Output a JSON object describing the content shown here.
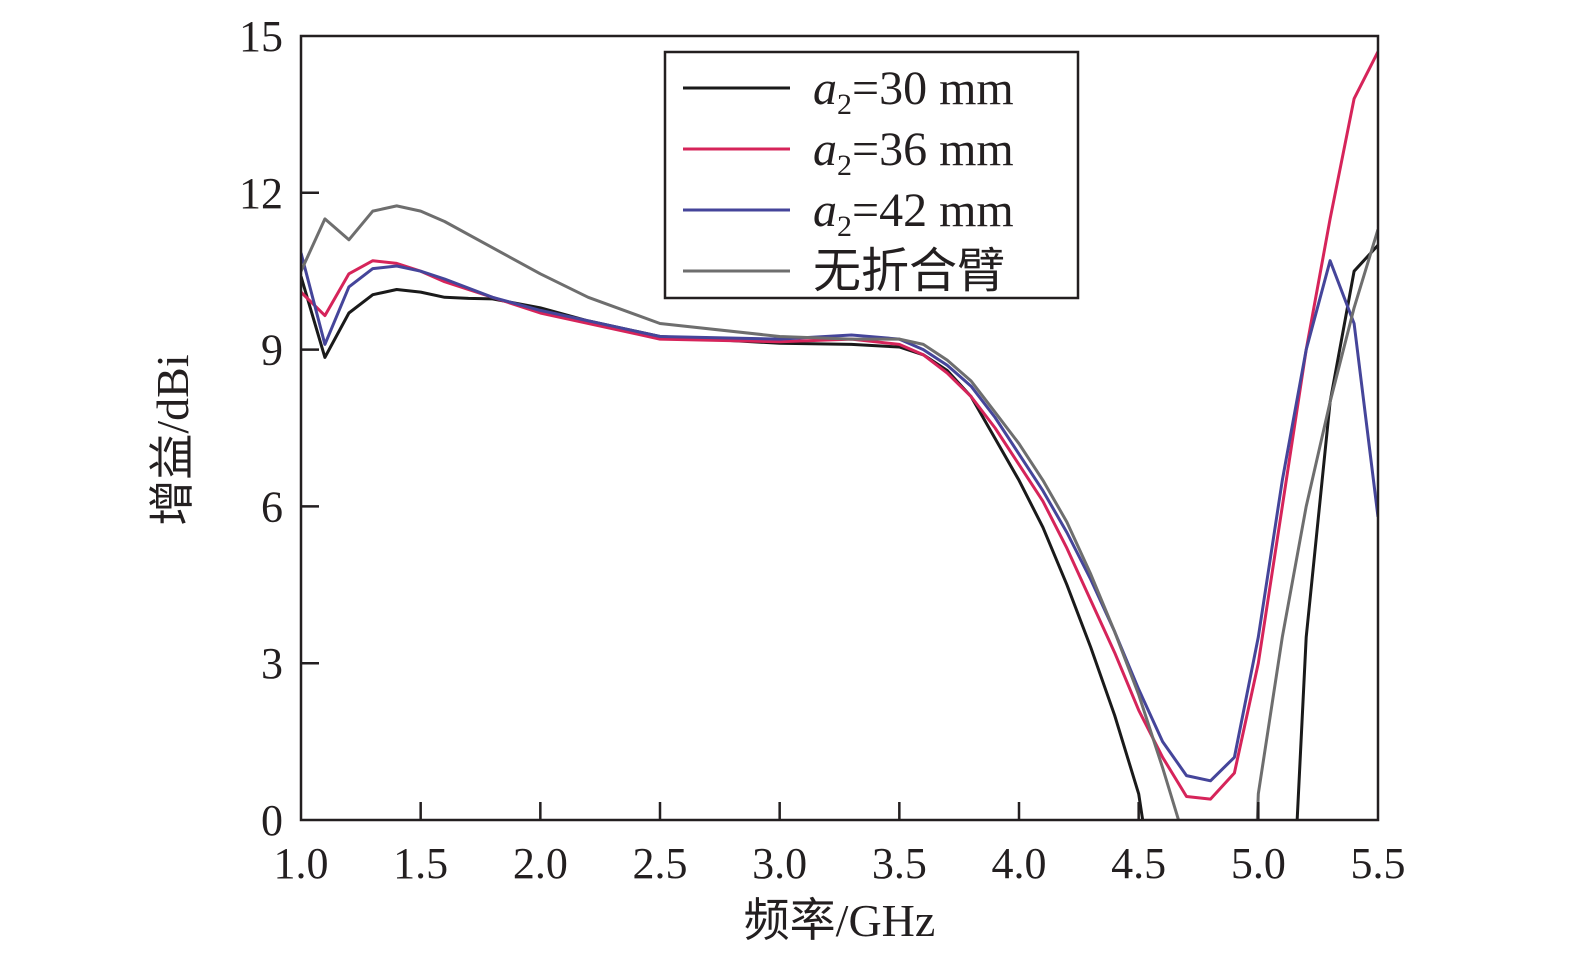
{
  "chart_data": {
    "type": "line",
    "xlabel": "频率/GHz",
    "ylabel": "增益/dBi",
    "xlim": [
      1.0,
      5.5
    ],
    "ylim": [
      0,
      15
    ],
    "xticks": [
      "1.0",
      "1.5",
      "2.0",
      "2.5",
      "3.0",
      "3.5",
      "4.0",
      "4.5",
      "5.0",
      "5.5"
    ],
    "yticks": [
      "0",
      "3",
      "6",
      "9",
      "12",
      "15"
    ],
    "grid": false,
    "legend_position": "top-right",
    "series": [
      {
        "name": "a2=30 mm",
        "legend_base": "a",
        "legend_sub": "2",
        "legend_rest": "=30 mm",
        "color": "#1a1a1a",
        "x": [
          1.0,
          1.1,
          1.2,
          1.3,
          1.4,
          1.5,
          1.6,
          1.7,
          1.8,
          2.0,
          2.2,
          2.5,
          3.0,
          3.3,
          3.5,
          3.6,
          3.7,
          3.8,
          3.9,
          4.0,
          4.1,
          4.2,
          4.3,
          4.4,
          4.5,
          4.55,
          4.58,
          5.13,
          5.2,
          5.3,
          5.4,
          5.5
        ],
        "y": [
          10.4,
          8.85,
          9.7,
          10.05,
          10.15,
          10.1,
          10.0,
          9.98,
          9.97,
          9.8,
          9.55,
          9.25,
          9.12,
          9.1,
          9.05,
          8.9,
          8.6,
          8.1,
          7.3,
          6.5,
          5.6,
          4.5,
          3.3,
          2.0,
          0.5,
          -1.0,
          -3.0,
          -3.0,
          3.5,
          8.0,
          10.5,
          11.0
        ]
      },
      {
        "name": "a2=36 mm",
        "legend_base": "a",
        "legend_sub": "2",
        "legend_rest": "=36 mm",
        "color": "#d6245a",
        "x": [
          1.0,
          1.1,
          1.2,
          1.3,
          1.4,
          1.5,
          1.6,
          1.8,
          2.0,
          2.5,
          3.0,
          3.3,
          3.5,
          3.6,
          3.7,
          3.8,
          3.9,
          4.0,
          4.1,
          4.2,
          4.3,
          4.4,
          4.5,
          4.6,
          4.7,
          4.8,
          4.9,
          5.0,
          5.1,
          5.2,
          5.3,
          5.4,
          5.5
        ],
        "y": [
          10.1,
          9.65,
          10.45,
          10.7,
          10.65,
          10.5,
          10.3,
          10.0,
          9.7,
          9.2,
          9.15,
          9.2,
          9.1,
          8.9,
          8.55,
          8.1,
          7.5,
          6.8,
          6.1,
          5.2,
          4.2,
          3.2,
          2.1,
          1.2,
          0.45,
          0.4,
          0.9,
          3.0,
          6.0,
          9.0,
          11.5,
          13.8,
          14.7
        ]
      },
      {
        "name": "a2=42 mm",
        "legend_base": "a",
        "legend_sub": "2",
        "legend_rest": "=42 mm",
        "color": "#45459a",
        "x": [
          1.0,
          1.1,
          1.2,
          1.3,
          1.4,
          1.5,
          1.6,
          1.8,
          2.0,
          2.5,
          3.0,
          3.3,
          3.5,
          3.6,
          3.7,
          3.8,
          3.9,
          4.0,
          4.1,
          4.2,
          4.3,
          4.4,
          4.5,
          4.6,
          4.7,
          4.8,
          4.9,
          5.0,
          5.1,
          5.2,
          5.3,
          5.4,
          5.5
        ],
        "y": [
          10.85,
          9.1,
          10.2,
          10.55,
          10.6,
          10.5,
          10.35,
          10.0,
          9.75,
          9.25,
          9.2,
          9.28,
          9.2,
          9.0,
          8.7,
          8.3,
          7.7,
          7.0,
          6.3,
          5.5,
          4.6,
          3.6,
          2.5,
          1.5,
          0.85,
          0.75,
          1.2,
          3.5,
          6.5,
          9.0,
          10.7,
          9.5,
          5.8
        ]
      },
      {
        "name": "无折合臂",
        "legend_base": "无折合臂",
        "legend_sub": "",
        "legend_rest": "",
        "color": "#6e6e6e",
        "x": [
          1.0,
          1.1,
          1.2,
          1.3,
          1.4,
          1.5,
          1.6,
          1.8,
          2.0,
          2.2,
          2.5,
          3.0,
          3.3,
          3.5,
          3.6,
          3.7,
          3.8,
          3.9,
          4.0,
          4.1,
          4.2,
          4.3,
          4.4,
          4.5,
          4.6,
          4.7,
          4.75,
          4.98,
          5.0,
          5.1,
          5.2,
          5.3,
          5.4,
          5.5
        ],
        "y": [
          10.5,
          11.5,
          11.1,
          11.65,
          11.75,
          11.65,
          11.45,
          10.95,
          10.45,
          10.0,
          9.5,
          9.25,
          9.2,
          9.2,
          9.1,
          8.8,
          8.4,
          7.8,
          7.2,
          6.5,
          5.7,
          4.7,
          3.6,
          2.4,
          1.0,
          -0.5,
          -2.0,
          -2.0,
          0.5,
          3.5,
          6.0,
          8.0,
          9.8,
          11.3
        ]
      }
    ]
  }
}
